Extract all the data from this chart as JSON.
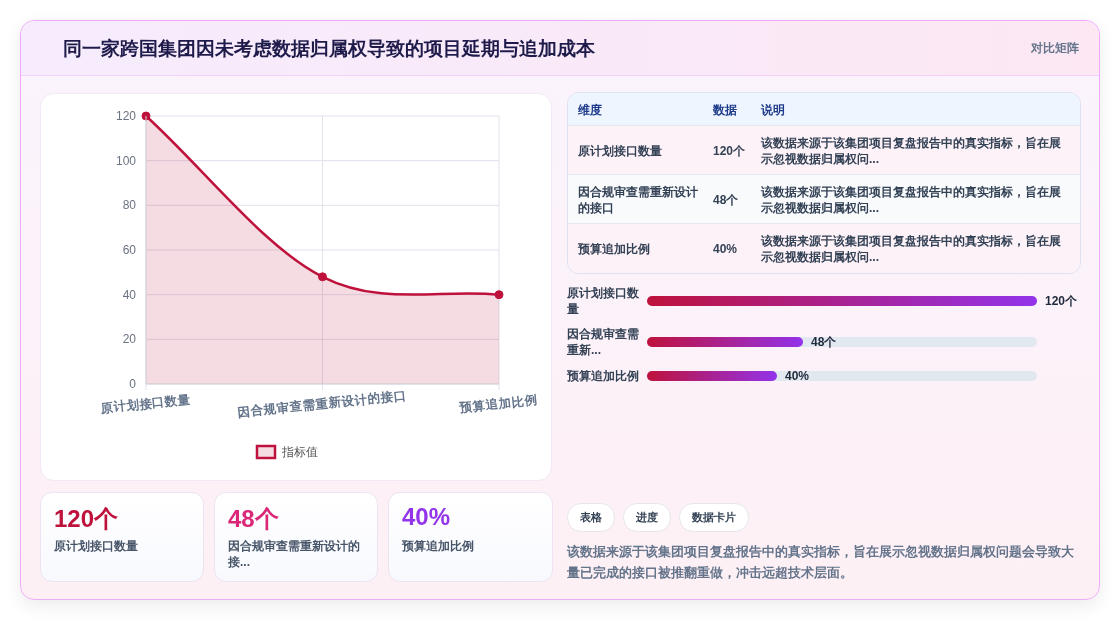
{
  "chart_data": [
    {
      "type": "area",
      "title": "同一家跨国集团因未考虑数据归属权导致的项目延期与追加成本",
      "annotations": [
        "对比矩阵"
      ],
      "categories": [
        "原计划接口数量",
        "因合规审查需重新设计的接口",
        "预算追加比例"
      ],
      "series": [
        {
          "name": "指标值",
          "color": "#be123c",
          "values": [
            120,
            48,
            40
          ]
        }
      ],
      "ylim": [
        0,
        120
      ],
      "yticks": [
        0,
        20,
        40,
        60,
        80,
        100,
        120
      ],
      "grid": true,
      "legend": "bottom",
      "marker": "circle"
    },
    {
      "type": "other",
      "annotations": [
        "维度",
        "数据",
        "说明",
        "原计划接口数量",
        "120个",
        "该数据来源于该集团项目复盘报告中的真实指标，旨在展示忽视数据归属权问...",
        "因合规审查需重新设计的接口",
        "48个",
        "该数据来源于该集团项目复盘报告中的真实指标，旨在展示忽视数据归属权问...",
        "预算追加比例",
        "40%",
        "该数据来源于该集团项目复盘报告中的真实指标，旨在展示忽视数据归属权问..."
      ]
    },
    {
      "type": "bar",
      "orientation": "horizontal",
      "categories": [
        "原计划接口数量",
        "因合规审查需重新...",
        "预算追加比例"
      ],
      "values": [
        120,
        48,
        40
      ],
      "value_labels": [
        "120个",
        "48个",
        "40%"
      ],
      "color": "#be123c",
      "xlim": [
        0,
        120
      ]
    },
    {
      "type": "other",
      "annotations": [
        "120个",
        "原计划接口数量",
        "48个",
        "因合规审查需重新设计的接...",
        "40%",
        "预算追加比例"
      ],
      "colors": [
        "#be123c",
        "#db2777",
        "#9333ea"
      ]
    },
    {
      "type": "other",
      "annotations": [
        "表格",
        "进度",
        "数据卡片",
        "该数据来源于该集团项目复盘报告中的真实指标，旨在展示忽视数据归属权问题会导致大量已完成的接口被推翻重做，冲击远超技术层面。"
      ]
    }
  ]
}
